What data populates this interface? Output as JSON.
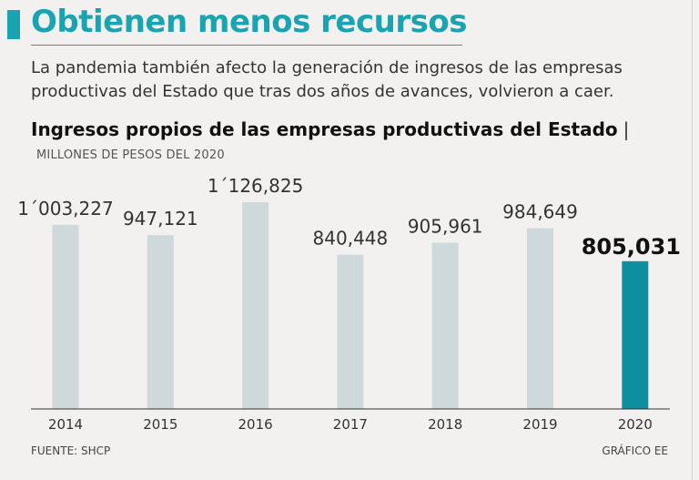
{
  "header": {
    "title": "Obtienen menos recursos",
    "intro": "La pandemia también afecto la generación de ingresos de las empresas productivas del Estado que tras dos años de avances, volvieron a caer."
  },
  "chart_data": {
    "type": "bar",
    "title": "Ingresos propios de las empresas productivas del Estado",
    "title_separator": "|",
    "unit_label": "MILLONES DE PESOS DEL 2020",
    "categories": [
      "2014",
      "2015",
      "2016",
      "2017",
      "2018",
      "2019",
      "2020"
    ],
    "values": [
      1003227,
      947121,
      1126825,
      840448,
      905961,
      984649,
      805031
    ],
    "value_labels": [
      "1´003,227",
      "947,121",
      "1´126,825",
      "840,448",
      "905,961",
      "984,649",
      "805,031"
    ],
    "highlight_index": 6,
    "ylim": [
      0,
      1126825
    ],
    "xlabel": "",
    "ylabel": "",
    "colors": {
      "bar": "#cfd8da",
      "highlight": "#0e8fa0",
      "axis": "#333333",
      "label": "#333333",
      "highlight_label": "#111111"
    }
  },
  "footer": {
    "source": "FUENTE: SHCP",
    "credit": "GRÁFICO EE"
  },
  "theme": {
    "accent": "#1aa3b0"
  }
}
